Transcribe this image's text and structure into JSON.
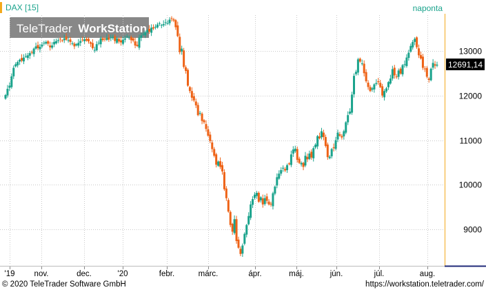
{
  "header": {
    "instrument": "DAX [15]",
    "interval": "naponta",
    "watermark_brand": "TeleTrader",
    "watermark_product": "WorkStation"
  },
  "footer": {
    "copyright": "© 2020 TeleTrader Software GmbH",
    "url": "https://workstation.teletrader.com/"
  },
  "colors": {
    "up": "#1aa38c",
    "down": "#ee6216",
    "grid": "#c8c8c8",
    "accent_bar": "#f3a91c",
    "axis_bottom": "#1f2a78",
    "price_tag_bg": "#000000"
  },
  "chart_data": {
    "type": "candlestick",
    "title": "DAX [15]",
    "period": "naponta",
    "y_ticks": [
      9000,
      10000,
      11000,
      12000,
      13000
    ],
    "y_tick_labels": [
      "9000",
      "10000",
      "11000",
      "12000",
      "13000"
    ],
    "ylim": [
      8200,
      13800
    ],
    "x_ticks": [
      "'19",
      "nov.",
      "dec.",
      "'20",
      "febr.",
      "márc.",
      "ápr.",
      "máj.",
      "jún.",
      "júl.",
      "aug."
    ],
    "last_price": 12691.14,
    "last_price_label": "12691,14",
    "grid": true,
    "series": [
      {
        "month": "'19",
        "close": [
          12010,
          12150,
          12220,
          12430,
          12620,
          12700,
          12750,
          12800,
          12780,
          12850,
          12880,
          12900,
          12950,
          12960,
          13050,
          13100,
          13060,
          13090,
          13140,
          13180,
          13200
        ]
      },
      {
        "month": "nov.",
        "close": [
          13160,
          13080,
          13120,
          13200,
          13220,
          13240,
          13260,
          13230,
          13280,
          13250,
          13240,
          13200,
          13170,
          13100,
          13150,
          13180,
          13220,
          13240,
          13260,
          13230,
          13210
        ]
      },
      {
        "month": "dec.",
        "close": [
          13160,
          13060,
          13020,
          13150,
          13180,
          13280,
          13240,
          13270,
          13290,
          13250,
          13300,
          13310,
          13220,
          13280,
          13210,
          13190,
          13250,
          13280,
          13320,
          13300,
          13240
        ]
      },
      {
        "month": "'20",
        "close": [
          13230,
          13120,
          13110,
          13300,
          13350,
          13380,
          13420,
          13460,
          13430,
          13520,
          13500,
          13540,
          13590,
          13620,
          13580,
          13600,
          13640,
          13620,
          13700,
          13730,
          13680
        ]
      },
      {
        "month": "febr.",
        "close": [
          13530,
          13330,
          12970,
          13050,
          12640,
          12550,
          12220,
          12100,
          11950,
          11890,
          11780,
          11560
        ]
      },
      {
        "month": "febr2",
        "close": [
          11610,
          11430,
          11400,
          11250,
          11100,
          10980,
          10800,
          10650,
          10450,
          10520,
          10400,
          10300
        ]
      },
      {
        "month": "márc.",
        "close": [
          9900,
          9700,
          9400,
          9100,
          8950,
          9230,
          8740,
          8590,
          8450,
          8640,
          8900,
          9100,
          9300,
          9560,
          9680,
          9780,
          9820,
          9620,
          9720,
          9560,
          9700
        ]
      },
      {
        "month": "ápr.",
        "close": [
          9640,
          9560,
          9560,
          9810,
          9960,
          10170,
          10250,
          10330,
          10380,
          10320,
          10440,
          10460,
          10680,
          10790,
          10810,
          10560,
          10490,
          10490,
          10400,
          10650,
          10570
        ]
      },
      {
        "month": "máj.",
        "close": [
          10700,
          10610,
          10820,
          10900,
          11090,
          11040,
          11200,
          11070,
          10870,
          10620,
          10630,
          10800,
          10820,
          11000,
          11170,
          11100,
          11060,
          11200,
          11400,
          11560,
          11640
        ]
      },
      {
        "month": "jún.",
        "close": [
          12020,
          12440,
          12530,
          12810,
          12760,
          12720,
          12500,
          12320,
          12190,
          12100,
          12160,
          12250,
          12280,
          12300,
          12190,
          12000,
          12100,
          12160,
          12300,
          12380,
          12590
        ]
      },
      {
        "month": "júl.",
        "close": [
          12450,
          12410,
          12560,
          12490,
          12680,
          12700,
          12850,
          12960,
          13110,
          13200,
          13270,
          13080,
          12900,
          12830,
          12620,
          12600,
          12420,
          12350,
          12600,
          12730,
          12670,
          12691
        ]
      }
    ]
  }
}
